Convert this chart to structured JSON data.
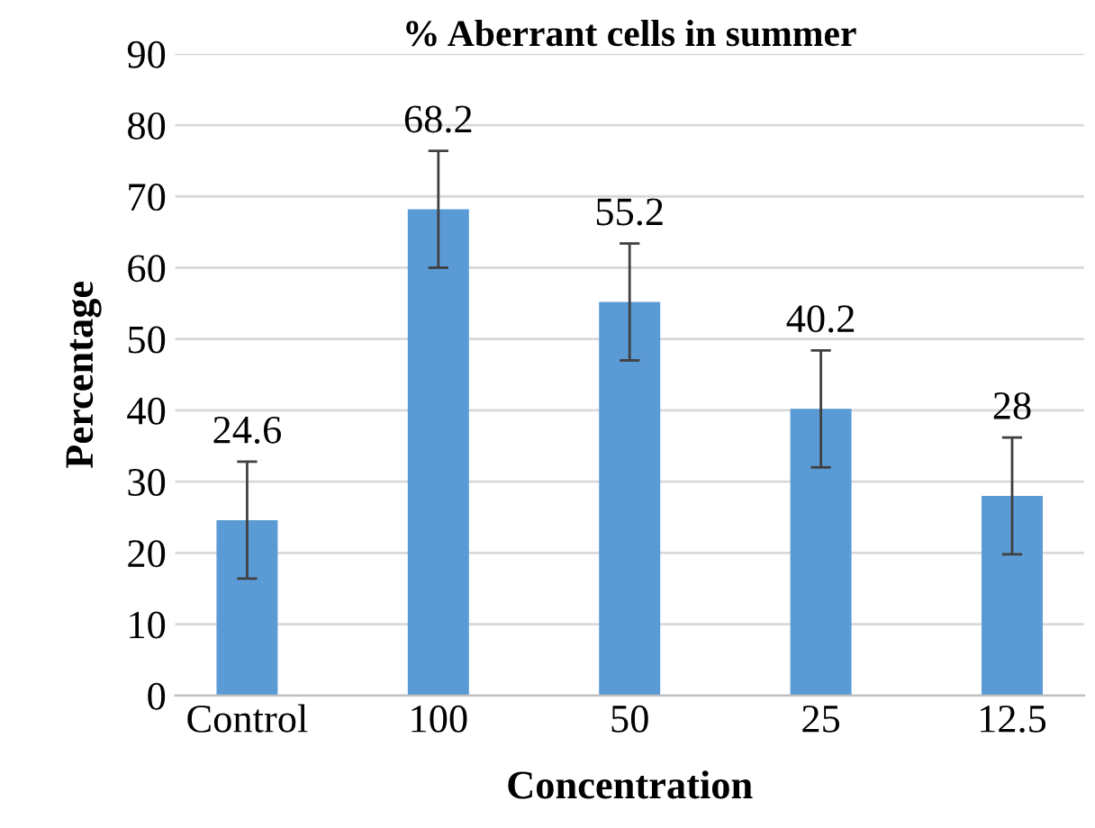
{
  "chart_data": {
    "type": "bar",
    "title": "% Aberrant cells in summer",
    "xlabel": "Concentration",
    "ylabel": "Percentage",
    "categories": [
      "Control",
      "100",
      "50",
      "25",
      "12.5"
    ],
    "values": [
      24.6,
      68.2,
      55.2,
      40.2,
      28
    ],
    "errors": [
      8.2,
      8.2,
      8.2,
      8.2,
      8.2
    ],
    "color": "#5b9bd5",
    "ylim": [
      0,
      90
    ],
    "yticks": [
      0,
      10,
      20,
      30,
      40,
      50,
      60,
      70,
      80,
      90
    ],
    "grid": "y",
    "data_labels": true,
    "legend": false
  }
}
